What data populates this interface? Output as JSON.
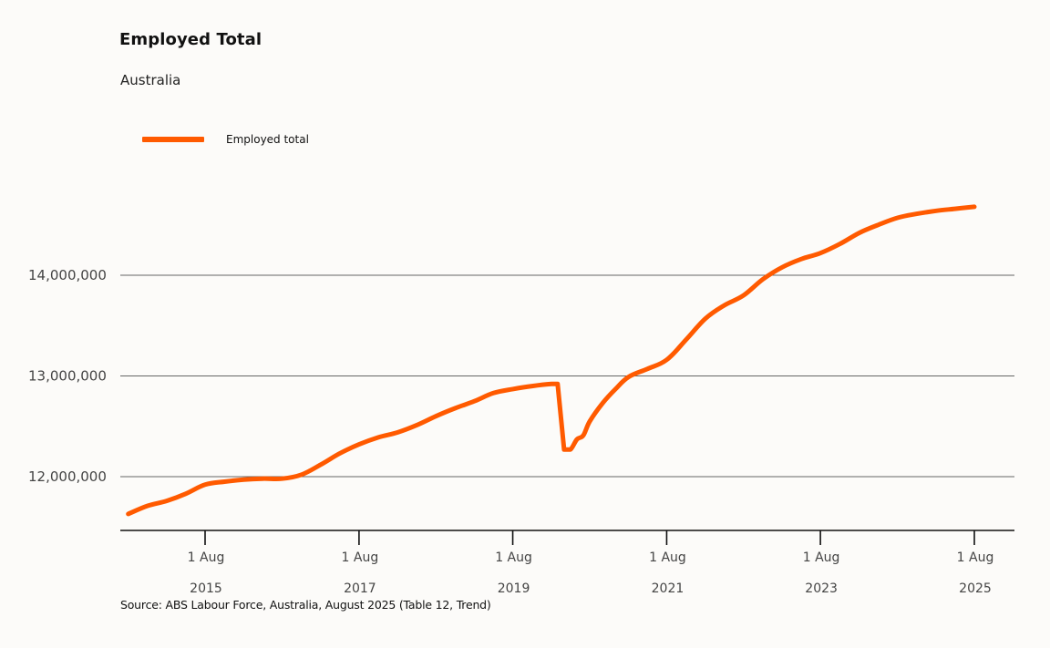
{
  "chart_data": {
    "type": "line",
    "title": "Employed Total",
    "subtitle": "Australia",
    "source": "Source: ABS Labour Force, Australia, August 2025 (Table 12, Trend)",
    "xlabel": "",
    "ylabel": "",
    "xlim": [
      "2014-12-01",
      "2025-12-01"
    ],
    "ylim": [
      11480000,
      14900000
    ],
    "yticks": [
      12000000,
      13000000,
      14000000
    ],
    "ytick_labels": [
      "12,000,000",
      "13,000,000",
      "14,000,000"
    ],
    "xticks": [
      "2015-08-01",
      "2017-08-01",
      "2019-08-01",
      "2021-08-01",
      "2023-08-01",
      "2025-08-01"
    ],
    "xtick_labels": [
      {
        "line1": "1 Aug",
        "line2": "2015"
      },
      {
        "line1": "1 Aug",
        "line2": "2017"
      },
      {
        "line1": "1 Aug",
        "line2": "2019"
      },
      {
        "line1": "1 Aug",
        "line2": "2021"
      },
      {
        "line1": "1 Aug",
        "line2": "2023"
      },
      {
        "line1": "1 Aug",
        "line2": "2025"
      }
    ],
    "grid": "horizontal",
    "legend_position": "top-left",
    "series": [
      {
        "name": "Employed total",
        "color": "#ff5a00",
        "x": [
          "2014-08-01",
          "2014-11-01",
          "2015-02-01",
          "2015-05-01",
          "2015-08-01",
          "2015-11-01",
          "2016-02-01",
          "2016-05-01",
          "2016-08-01",
          "2016-11-01",
          "2017-02-01",
          "2017-05-01",
          "2017-08-01",
          "2017-11-01",
          "2018-02-01",
          "2018-05-01",
          "2018-08-01",
          "2018-11-01",
          "2019-02-01",
          "2019-05-01",
          "2019-08-01",
          "2019-11-01",
          "2020-02-01",
          "2020-03-01",
          "2020-04-01",
          "2020-05-01",
          "2020-06-01",
          "2020-07-01",
          "2020-08-01",
          "2020-10-01",
          "2020-12-01",
          "2021-02-01",
          "2021-05-01",
          "2021-08-01",
          "2021-11-01",
          "2022-02-01",
          "2022-05-01",
          "2022-08-01",
          "2022-11-01",
          "2023-02-01",
          "2023-05-01",
          "2023-08-01",
          "2023-11-01",
          "2024-02-01",
          "2024-05-01",
          "2024-08-01",
          "2024-11-01",
          "2025-02-01",
          "2025-05-01",
          "2025-08-01"
        ],
        "values": [
          11630000,
          11710000,
          11760000,
          11830000,
          11920000,
          11950000,
          11970000,
          11980000,
          11980000,
          12020000,
          12120000,
          12230000,
          12320000,
          12390000,
          12440000,
          12510000,
          12600000,
          12680000,
          12750000,
          12830000,
          12870000,
          12900000,
          12920000,
          12920000,
          12270000,
          12270000,
          12370000,
          12410000,
          12550000,
          12730000,
          12870000,
          12990000,
          13070000,
          13160000,
          13360000,
          13570000,
          13700000,
          13800000,
          13960000,
          14080000,
          14160000,
          14220000,
          14310000,
          14420000,
          14500000,
          14570000,
          14610000,
          14640000,
          14660000,
          14680000
        ]
      }
    ]
  }
}
